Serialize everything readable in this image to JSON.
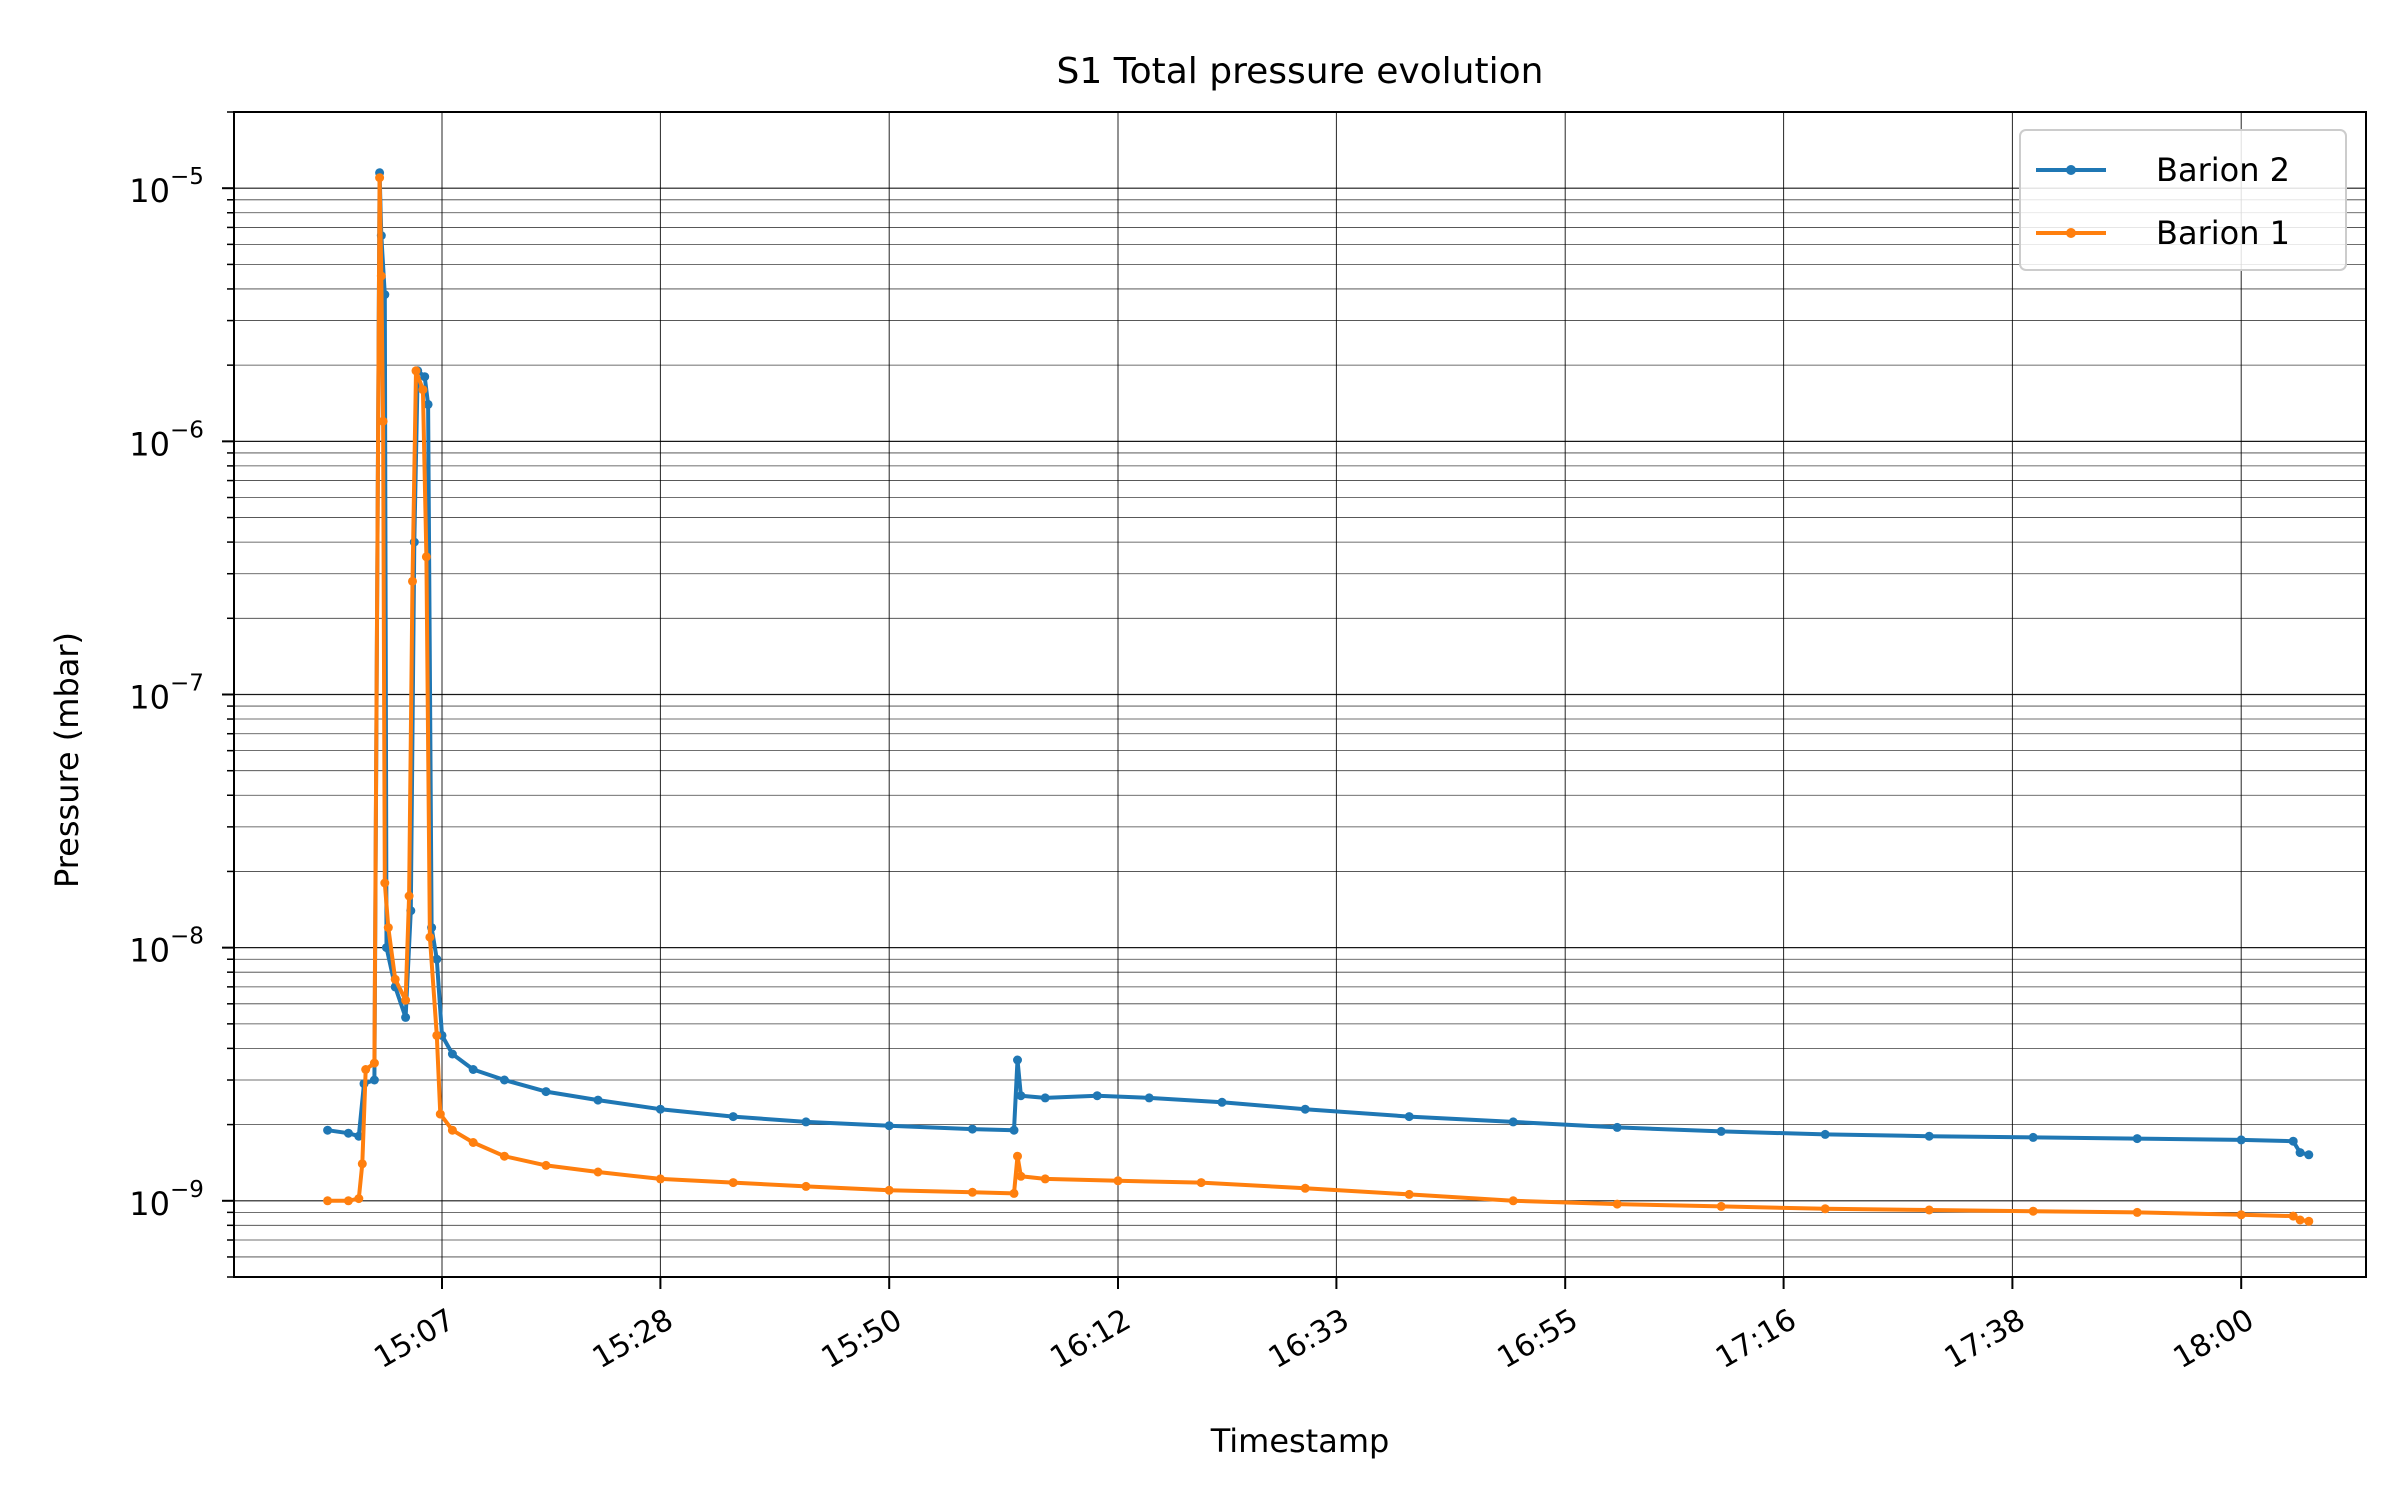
{
  "chart_data": {
    "type": "line",
    "title": "S1 Total pressure evolution",
    "xlabel": "Timestamp",
    "ylabel": "Pressure (mbar)",
    "yscale": "log",
    "ylim": [
      5e-10,
      2e-05
    ],
    "xlim": [
      "14:47",
      "18:12"
    ],
    "x_ticks": [
      "15:07",
      "15:28",
      "15:50",
      "16:12",
      "16:33",
      "16:55",
      "17:16",
      "17:38",
      "18:00"
    ],
    "y_ticks": [
      {
        "value": 1e-09,
        "exp": "−9"
      },
      {
        "value": 1e-08,
        "exp": "−8"
      },
      {
        "value": 1e-07,
        "exp": "−7"
      },
      {
        "value": 1e-06,
        "exp": "−6"
      },
      {
        "value": 1e-05,
        "exp": "−5"
      }
    ],
    "grid": "major and minor",
    "legend_position": "top-right",
    "series": [
      {
        "name": "Barion 2",
        "color": "#1f77b4",
        "points": [
          [
            "14:56",
            1.9e-09
          ],
          [
            "14:58",
            1.85e-09
          ],
          [
            "14:59",
            1.8e-09
          ],
          [
            "14:59:30",
            2.9e-09
          ],
          [
            "15:00:30",
            3e-09
          ],
          [
            "15:01",
            1.15e-05
          ],
          [
            "15:01:10",
            6.5e-06
          ],
          [
            "15:01:30",
            3.8e-06
          ],
          [
            "15:01:40",
            1e-08
          ],
          [
            "15:02:30",
            7e-09
          ],
          [
            "15:03:30",
            5.3e-09
          ],
          [
            "15:04",
            1.4e-08
          ],
          [
            "15:04:20",
            4e-07
          ],
          [
            "15:04:40",
            1.9e-06
          ],
          [
            "15:05:20",
            1.8e-06
          ],
          [
            "15:05:40",
            1.4e-06
          ],
          [
            "15:06:00",
            1.2e-08
          ],
          [
            "15:06:30",
            9e-09
          ],
          [
            "15:07:00",
            4.5e-09
          ],
          [
            "15:08",
            3.8e-09
          ],
          [
            "15:10",
            3.3e-09
          ],
          [
            "15:13",
            3e-09
          ],
          [
            "15:17",
            2.7e-09
          ],
          [
            "15:22",
            2.5e-09
          ],
          [
            "15:28",
            2.3e-09
          ],
          [
            "15:35",
            2.15e-09
          ],
          [
            "15:42",
            2.05e-09
          ],
          [
            "15:50",
            1.98e-09
          ],
          [
            "15:58",
            1.92e-09
          ],
          [
            "16:02",
            1.9e-09
          ],
          [
            "16:02:20",
            3.6e-09
          ],
          [
            "16:02:40",
            2.6e-09
          ],
          [
            "16:05",
            2.55e-09
          ],
          [
            "16:10",
            2.6e-09
          ],
          [
            "16:15",
            2.55e-09
          ],
          [
            "16:22",
            2.45e-09
          ],
          [
            "16:30",
            2.3e-09
          ],
          [
            "16:40",
            2.15e-09
          ],
          [
            "16:50",
            2.05e-09
          ],
          [
            "17:00",
            1.95e-09
          ],
          [
            "17:10",
            1.88e-09
          ],
          [
            "17:20",
            1.83e-09
          ],
          [
            "17:30",
            1.8e-09
          ],
          [
            "17:40",
            1.78e-09
          ],
          [
            "17:50",
            1.76e-09
          ],
          [
            "18:00",
            1.74e-09
          ],
          [
            "18:05",
            1.72e-09
          ],
          [
            "18:05:40",
            1.55e-09
          ],
          [
            "18:06:30",
            1.52e-09
          ]
        ]
      },
      {
        "name": "Barion 1",
        "color": "#ff7f0e",
        "points": [
          [
            "14:56",
            1e-09
          ],
          [
            "14:58",
            1e-09
          ],
          [
            "14:59",
            1.02e-09
          ],
          [
            "14:59:20",
            1.4e-09
          ],
          [
            "14:59:40",
            3.3e-09
          ],
          [
            "15:00:30",
            3.5e-09
          ],
          [
            "15:01",
            1.1e-05
          ],
          [
            "15:01:10",
            4.5e-06
          ],
          [
            "15:01:20",
            1.2e-06
          ],
          [
            "15:01:30",
            1.8e-08
          ],
          [
            "15:01:50",
            1.2e-08
          ],
          [
            "15:02:30",
            7.5e-09
          ],
          [
            "15:03:30",
            6.2e-09
          ],
          [
            "15:03:50",
            1.6e-08
          ],
          [
            "15:04:10",
            2.8e-07
          ],
          [
            "15:04:30",
            1.9e-06
          ],
          [
            "15:05:10",
            1.6e-06
          ],
          [
            "15:05:30",
            3.5e-07
          ],
          [
            "15:05:50",
            1.1e-08
          ],
          [
            "15:06:30",
            4.5e-09
          ],
          [
            "15:06:50",
            2.2e-09
          ],
          [
            "15:08",
            1.9e-09
          ],
          [
            "15:10",
            1.7e-09
          ],
          [
            "15:13",
            1.5e-09
          ],
          [
            "15:17",
            1.38e-09
          ],
          [
            "15:22",
            1.3e-09
          ],
          [
            "15:28",
            1.22e-09
          ],
          [
            "15:35",
            1.18e-09
          ],
          [
            "15:42",
            1.14e-09
          ],
          [
            "15:50",
            1.1e-09
          ],
          [
            "15:58",
            1.08e-09
          ],
          [
            "16:02",
            1.07e-09
          ],
          [
            "16:02:20",
            1.5e-09
          ],
          [
            "16:02:40",
            1.25e-09
          ],
          [
            "16:05",
            1.22e-09
          ],
          [
            "16:12",
            1.2e-09
          ],
          [
            "16:20",
            1.18e-09
          ],
          [
            "16:30",
            1.12e-09
          ],
          [
            "16:40",
            1.06e-09
          ],
          [
            "16:50",
            1e-09
          ],
          [
            "17:00",
            9.7e-10
          ],
          [
            "17:10",
            9.5e-10
          ],
          [
            "17:20",
            9.3e-10
          ],
          [
            "17:30",
            9.2e-10
          ],
          [
            "17:40",
            9.1e-10
          ],
          [
            "17:50",
            9e-10
          ],
          [
            "18:00",
            8.8e-10
          ],
          [
            "18:05",
            8.7e-10
          ],
          [
            "18:05:40",
            8.4e-10
          ],
          [
            "18:06:30",
            8.3e-10
          ]
        ]
      }
    ]
  }
}
